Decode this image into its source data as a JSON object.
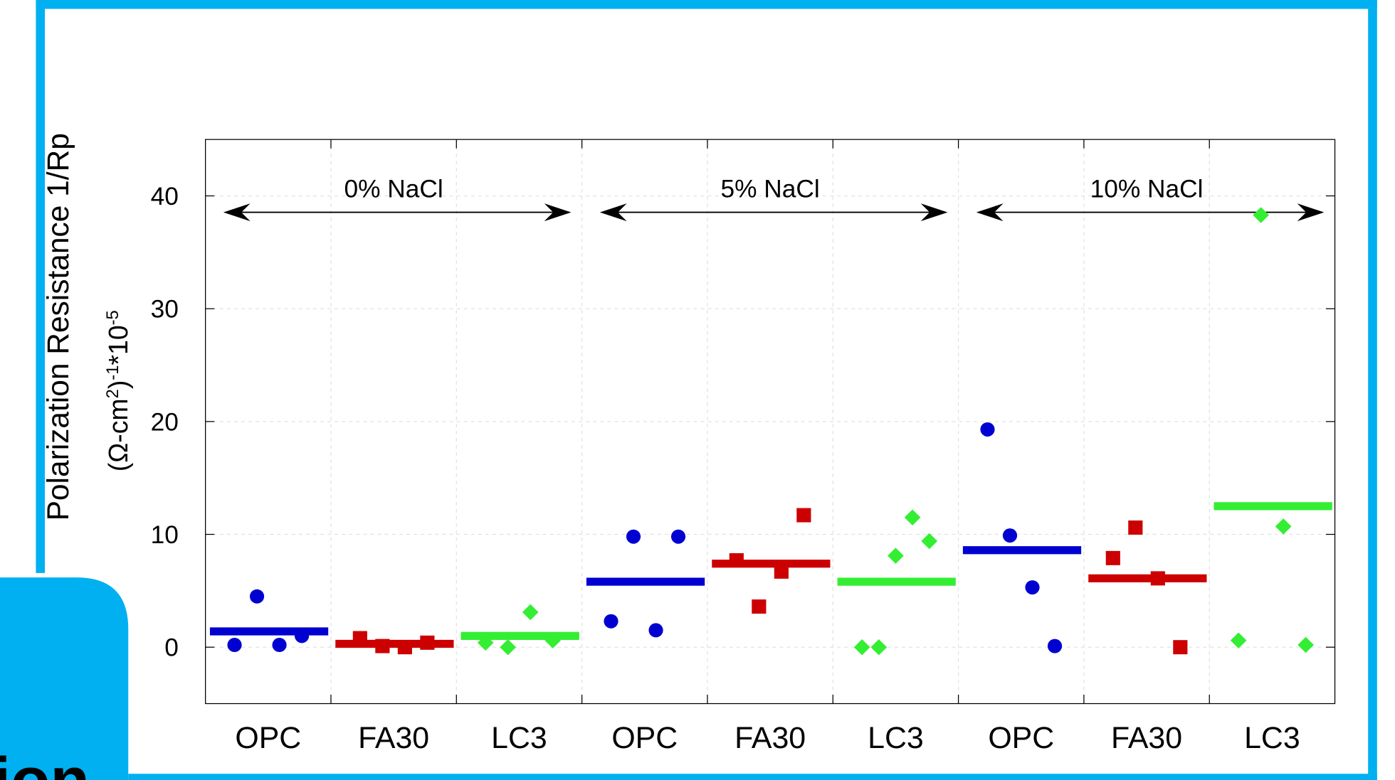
{
  "corner_text": "ion",
  "chart_data": {
    "type": "scatter",
    "ylabel": "Polarization Resistance 1/Rp",
    "ylabel_units": [
      {
        "text": "(Ω-cm"
      },
      {
        "text": "2",
        "sup": true
      },
      {
        "text": ")"
      },
      {
        "text": "-1",
        "sup": true
      },
      {
        "text": "*10"
      },
      {
        "text": "-5",
        "sup": true
      }
    ],
    "groups": [
      "0% NaCl",
      "5% NaCl",
      "10% NaCl"
    ],
    "points": [
      {
        "category": "OPC",
        "color": "#0000d0",
        "marker": "circle",
        "values": [
          0.2,
          4.5,
          0.2,
          1.0
        ],
        "mean": 1.4
      },
      {
        "category": "FA30",
        "color": "#cc0000",
        "marker": "square",
        "values": [
          0.8,
          0.1,
          0,
          0.4
        ],
        "mean": 0.3
      },
      {
        "category": "LC3",
        "color": "#33ee33",
        "marker": "diamond",
        "values": [
          0.4,
          0,
          3.1,
          0.6
        ],
        "mean": 1.0
      },
      {
        "category": "OPC",
        "color": "#0000d0",
        "marker": "circle",
        "values": [
          2.3,
          9.8,
          1.5,
          9.8
        ],
        "mean": 5.8
      },
      {
        "category": "FA30",
        "color": "#cc0000",
        "marker": "square",
        "values": [
          7.7,
          3.6,
          6.7,
          11.7
        ],
        "mean": 7.4
      },
      {
        "category": "LC3",
        "color": "#33ee33",
        "marker": "diamond",
        "values": [
          0,
          0,
          8.1,
          11.5,
          9.4
        ],
        "mean": 5.8
      },
      {
        "category": "OPC",
        "color": "#0000d0",
        "marker": "circle",
        "values": [
          19.3,
          9.9,
          5.3,
          0.1
        ],
        "mean": 8.6
      },
      {
        "category": "FA30",
        "color": "#cc0000",
        "marker": "square",
        "values": [
          7.9,
          10.6,
          6.1,
          0
        ],
        "mean": 6.1
      },
      {
        "category": "LC3",
        "color": "#33ee33",
        "marker": "diamond",
        "values": [
          0.6,
          38.3,
          10.7,
          0.2
        ],
        "mean": 12.5
      }
    ],
    "ylim": [
      -5,
      45
    ],
    "yticks": [
      0,
      10,
      20,
      30,
      40
    ],
    "grid": true
  }
}
